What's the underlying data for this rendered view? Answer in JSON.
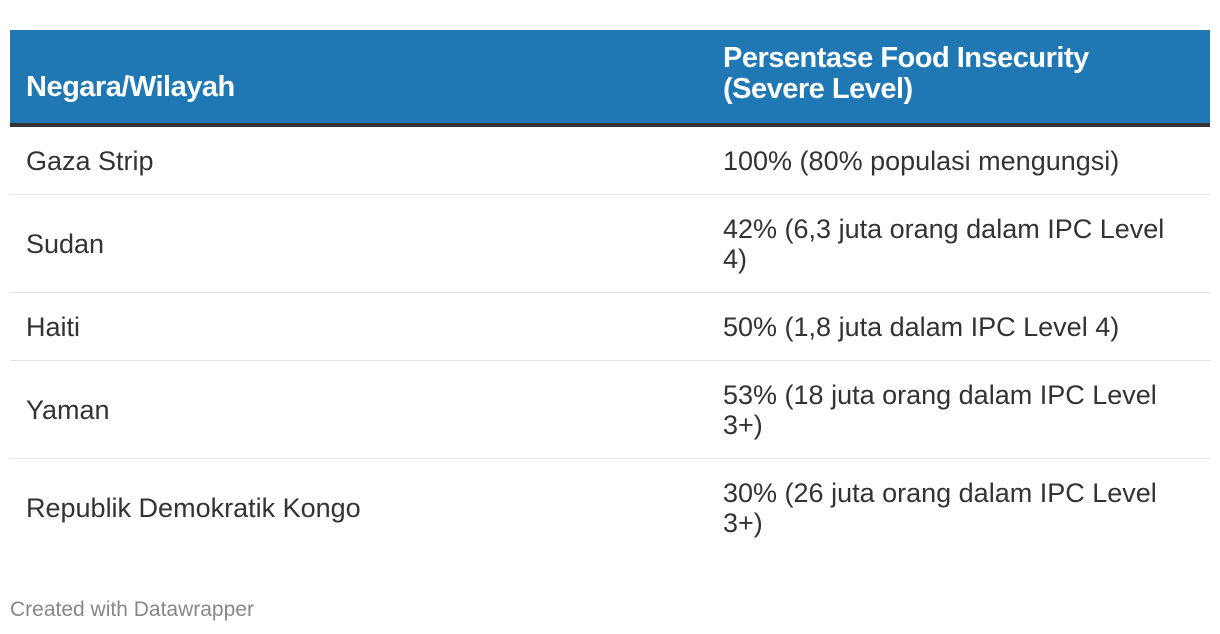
{
  "chart_data": {
    "type": "table",
    "columns": [
      "Negara/Wilayah",
      "Persentase Food Insecurity (Severe Level)"
    ],
    "rows": [
      [
        "Gaza Strip",
        "100% (80% populasi mengungsi)"
      ],
      [
        "Sudan",
        "42% (6,3 juta orang dalam IPC Level 4)"
      ],
      [
        "Haiti",
        "50% (1,8 juta dalam IPC Level 4)"
      ],
      [
        "Yaman",
        "53% (18 juta orang dalam IPC Level 3+)"
      ],
      [
        "Republik Demokratik Kongo",
        "30% (26 juta orang dalam IPC Level 3+)"
      ]
    ]
  },
  "colors": {
    "header_background": "#1f77b4",
    "header_text": "#ffffff",
    "body_text": "#333333",
    "row_divider": "#e3e3e3",
    "footer_text": "#888888"
  },
  "footer": {
    "credit": "Created with Datawrapper"
  }
}
